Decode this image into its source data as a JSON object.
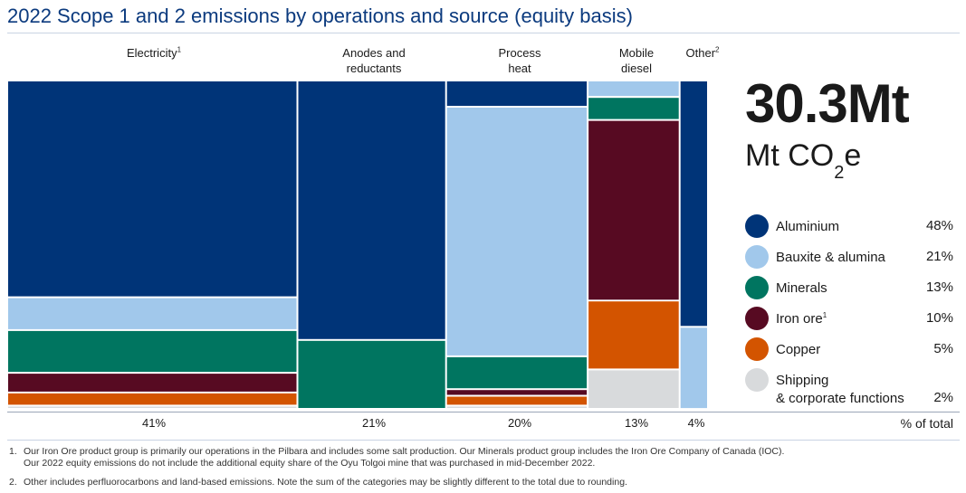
{
  "title": "2022 Scope 1 and 2 emissions by operations and source (equity basis)",
  "total": {
    "value": "30.3Mt",
    "unit_main": "Mt CO",
    "unit_sub": "2",
    "unit_tail": "e"
  },
  "columns": [
    {
      "label_lines": [
        "Electricity"
      ],
      "sup": "1",
      "pct": "41%"
    },
    {
      "label_lines": [
        "Anodes and",
        "reductants"
      ],
      "sup": "",
      "pct": "21%"
    },
    {
      "label_lines": [
        "Process",
        "heat"
      ],
      "sup": "",
      "pct": "20%"
    },
    {
      "label_lines": [
        "Mobile",
        "diesel"
      ],
      "sup": "",
      "pct": "13%"
    },
    {
      "label_lines": [
        "Other"
      ],
      "sup": "2",
      "pct": "4%"
    }
  ],
  "pct_total_label": "% of total",
  "legend": [
    {
      "label": "Aluminium",
      "sup": "",
      "pct": "48%",
      "color": "#003478"
    },
    {
      "label": "Bauxite & alumina",
      "sup": "",
      "pct": "21%",
      "color": "#a1c8eb"
    },
    {
      "label": "Minerals",
      "sup": "",
      "pct": "13%",
      "color": "#007560"
    },
    {
      "label": "Iron ore",
      "sup": "1",
      "pct": "10%",
      "color": "#570a22"
    },
    {
      "label": "Copper",
      "sup": "",
      "pct": "5%",
      "color": "#d35400"
    },
    {
      "label": "Shipping",
      "label2": "& corporate functions",
      "sup": "",
      "pct": "2%",
      "color": "#d8dadc"
    }
  ],
  "chart_data": {
    "type": "marimekko",
    "title": "2022 Scope 1 and 2 emissions by operations and source (equity basis)",
    "total": "30.3Mt",
    "categories": [
      "Electricity",
      "Anodes and reductants",
      "Process heat",
      "Mobile diesel",
      "Other"
    ],
    "column_share_pct": [
      41,
      21,
      20,
      13,
      4
    ],
    "series": [
      {
        "name": "Aluminium",
        "values": [
          66,
          79,
          8,
          0,
          75
        ]
      },
      {
        "name": "Bauxite & alumina",
        "values": [
          10,
          0,
          76,
          5,
          25
        ]
      },
      {
        "name": "Minerals",
        "values": [
          13,
          21,
          10,
          7,
          0
        ]
      },
      {
        "name": "Iron ore",
        "values": [
          6,
          0,
          2,
          55,
          0
        ]
      },
      {
        "name": "Copper",
        "values": [
          4,
          0,
          3,
          21,
          0
        ]
      },
      {
        "name": "Shipping & corporate functions",
        "values": [
          1,
          0,
          1,
          12,
          0
        ]
      }
    ],
    "legend_pct": [
      48,
      21,
      13,
      10,
      5,
      2
    ],
    "legend_position": "right"
  },
  "footnotes": [
    {
      "num": "1.",
      "lines": [
        "Our Iron Ore product group is primarily our operations in the Pilbara and includes some salt production. Our Minerals product group includes the Iron Ore Company of Canada (IOC).",
        "Our 2022 equity emissions do not include the additional equity share of the Oyu Tolgoi mine that was purchased in mid-December 2022."
      ]
    },
    {
      "num": "2.",
      "lines": [
        "Other includes perfluorocarbons and land-based emissions. Note the sum of the categories may be slightly different to the total due to rounding."
      ]
    }
  ]
}
